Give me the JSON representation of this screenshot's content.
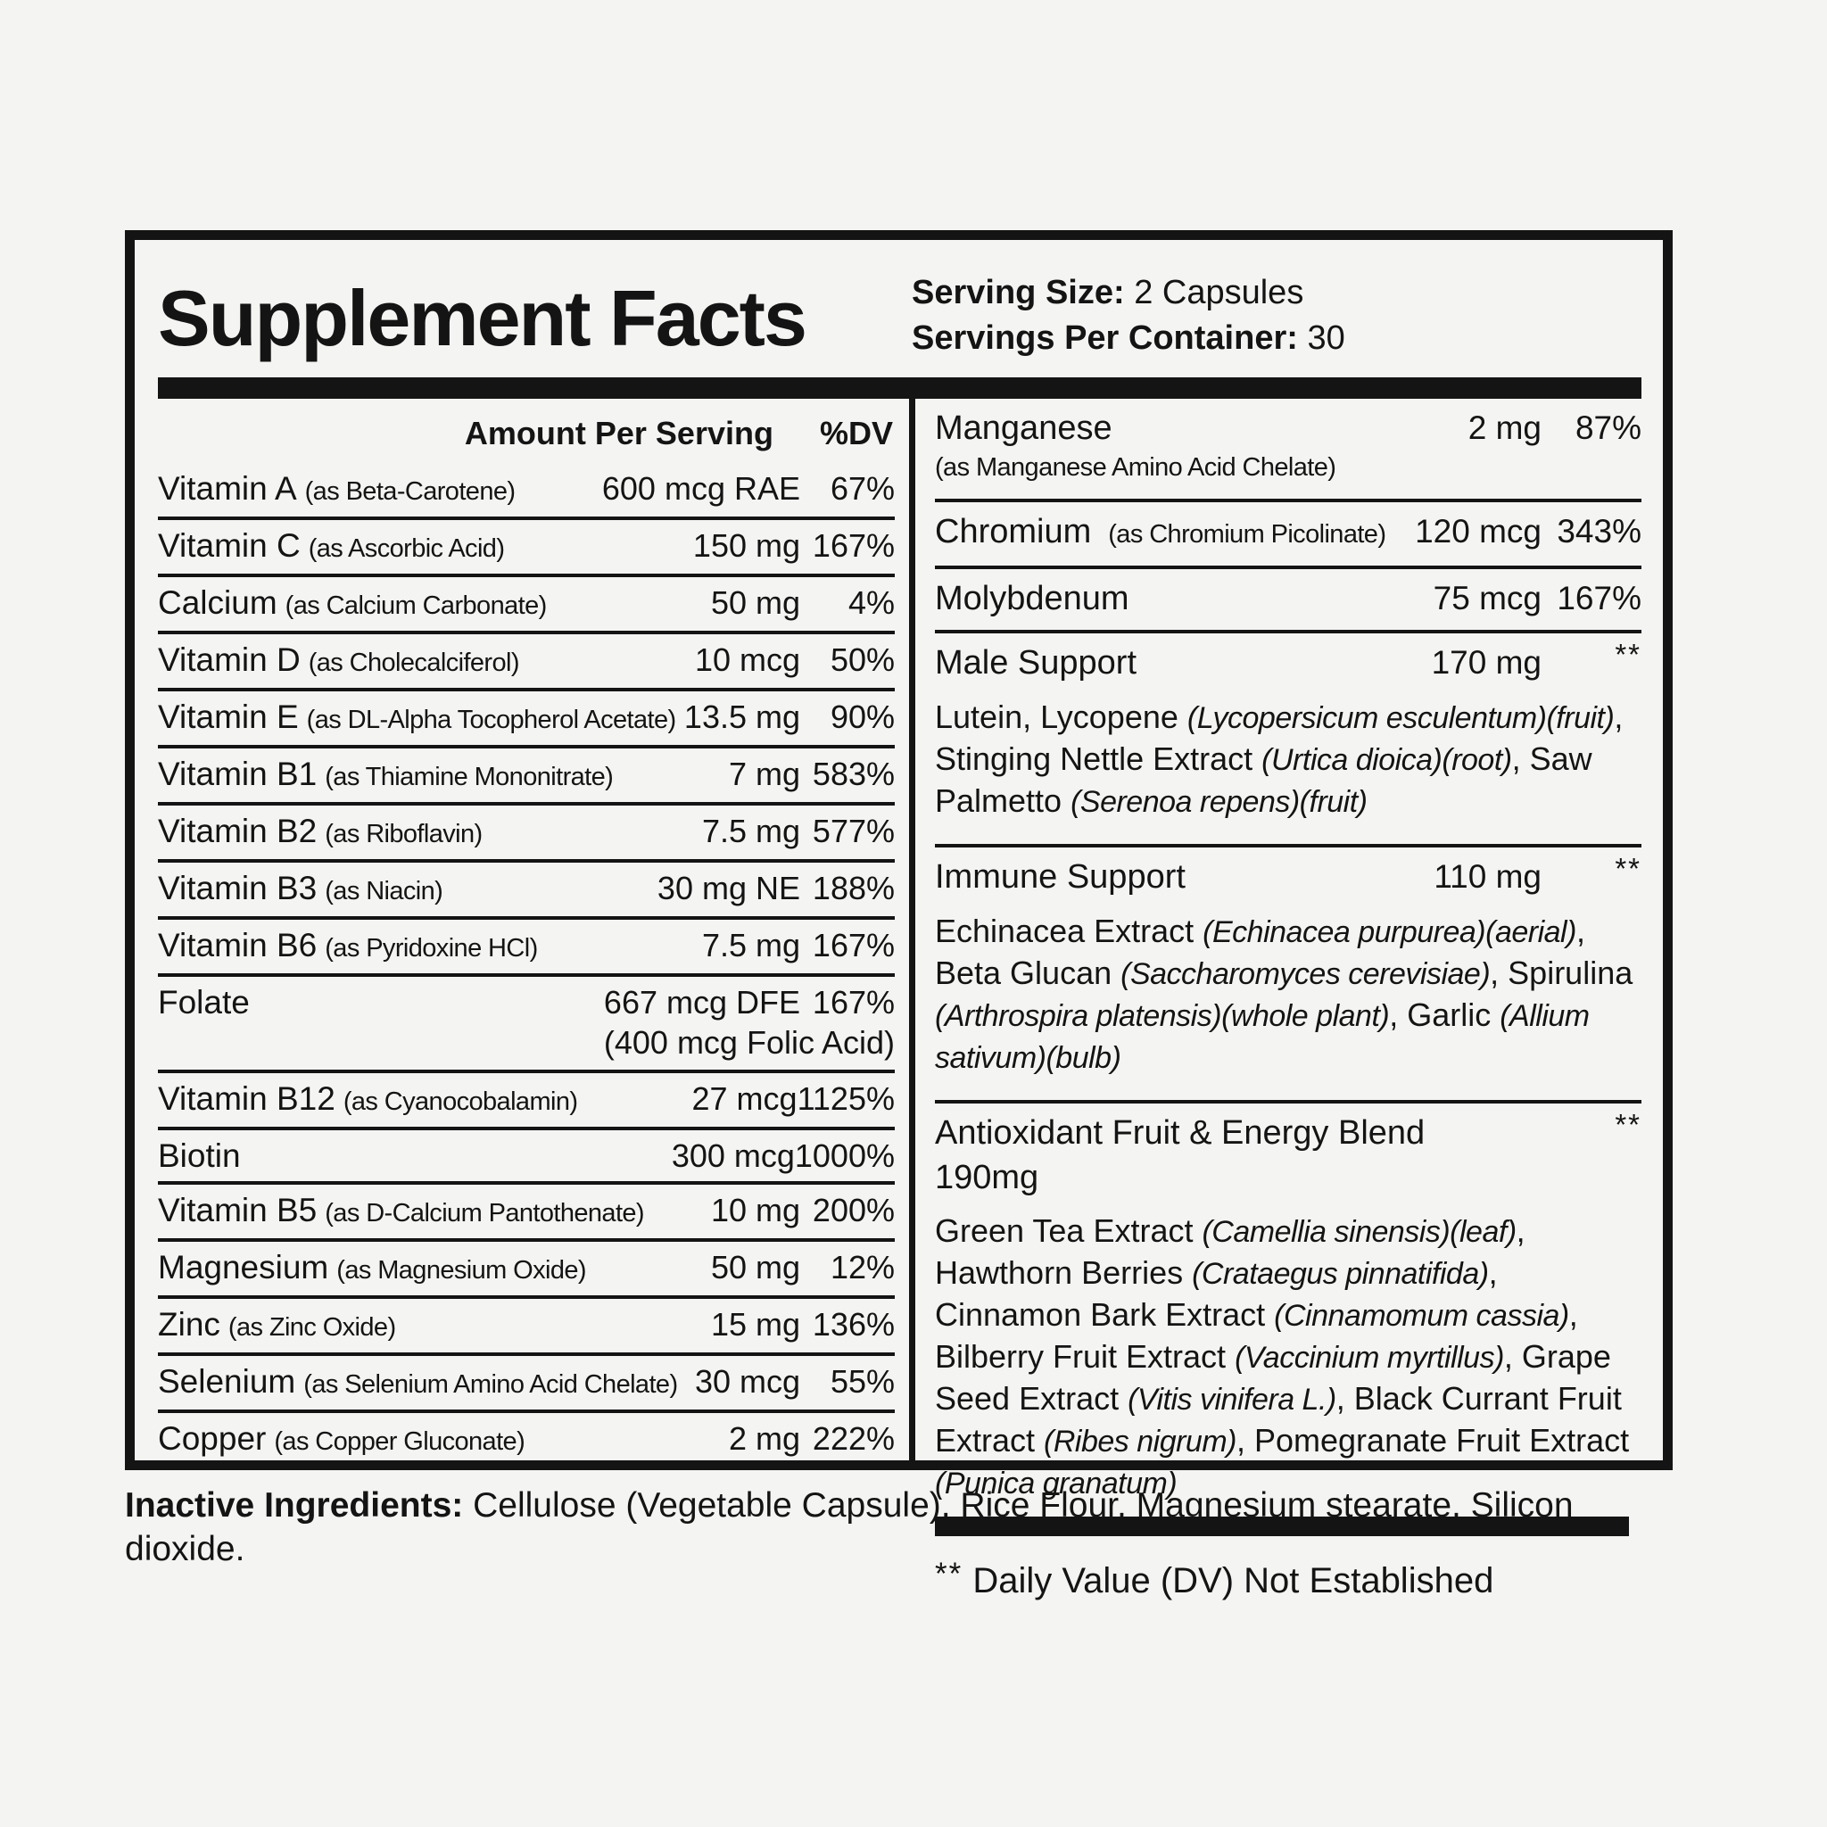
{
  "colors": {
    "ink": "#141414",
    "background": "#f4f4f2"
  },
  "label": {
    "title": "Supplement Facts",
    "serving": {
      "size_label": "Serving Size:",
      "size_value": "2 Capsules",
      "container_label": "Servings Per Container:",
      "container_value": "30"
    },
    "left": {
      "header_amount": "Amount Per Serving",
      "header_dv": "%DV",
      "rows": [
        {
          "name": "Vitamin A",
          "form": "(as Beta-Carotene)",
          "amount": "600 mcg RAE",
          "dv": "67%"
        },
        {
          "name": "Vitamin C",
          "form": "(as Ascorbic Acid)",
          "amount": "150 mg",
          "dv": "167%"
        },
        {
          "name": "Calcium",
          "form": "(as Calcium Carbonate)",
          "amount": "50 mg",
          "dv": "4%"
        },
        {
          "name": "Vitamin D",
          "form": "(as Cholecalciferol)",
          "amount": "10 mcg",
          "dv": "50%"
        },
        {
          "name": "Vitamin E",
          "form": "(as DL-Alpha Tocopherol Acetate)",
          "amount": "13.5 mg",
          "dv": "90%"
        },
        {
          "name": "Vitamin B1",
          "form": "(as Thiamine Mononitrate)",
          "amount": "7 mg",
          "dv": "583%"
        },
        {
          "name": "Vitamin B2",
          "form": "(as Riboflavin)",
          "amount": "7.5 mg",
          "dv": "577%"
        },
        {
          "name": "Vitamin B3",
          "form": "(as Niacin)",
          "amount": "30 mg NE",
          "dv": "188%"
        },
        {
          "name": "Vitamin B6",
          "form": "(as Pyridoxine HCl)",
          "amount": "7.5 mg",
          "dv": "167%"
        },
        {
          "name": "Folate",
          "form": "",
          "amount": "667 mcg DFE",
          "dv": "167%",
          "note": "(400 mcg Folic Acid)"
        },
        {
          "name": "Vitamin B12",
          "form": "(as Cyanocobalamin)",
          "amount": "27 mcg",
          "dv": "1125%"
        },
        {
          "name": "Biotin",
          "form": "",
          "amount": "300 mcg",
          "dv": "1000%"
        },
        {
          "name": "Vitamin B5",
          "form": "(as D-Calcium Pantothenate)",
          "amount": "10 mg",
          "dv": "200%"
        },
        {
          "name": "Magnesium",
          "form": "(as Magnesium Oxide)",
          "amount": "50 mg",
          "dv": "12%"
        },
        {
          "name": "Zinc",
          "form": "(as Zinc Oxide)",
          "amount": "15 mg",
          "dv": "136%"
        },
        {
          "name": "Selenium",
          "form": "(as Selenium Amino Acid Chelate)",
          "amount": "30 mcg",
          "dv": "55%"
        },
        {
          "name": "Copper",
          "form": "(as Copper Gluconate)",
          "amount": "2 mg",
          "dv": "222%"
        }
      ]
    },
    "right": {
      "rows": [
        {
          "type": "nutrient",
          "name": "Manganese",
          "sub": "(as Manganese Amino Acid Chelate)",
          "amount": "2 mg",
          "dv": "87%"
        },
        {
          "type": "nutrient",
          "name": "Chromium",
          "form": "(as Chromium Picolinate)",
          "amount": "120 mcg",
          "dv": "343%"
        },
        {
          "type": "nutrient",
          "name": "Molybdenum",
          "amount": "75 mcg",
          "dv": "167%"
        },
        {
          "type": "blend",
          "name": "Male Support",
          "amount": "170 mg",
          "dv": "**",
          "ingredients": [
            {
              "t": "Lutein, Lycopene "
            },
            {
              "t": "(Lycopersicum esculentum)(fruit)",
              "i": true
            },
            {
              "t": ", Stinging Nettle Extract "
            },
            {
              "t": "(Urtica dioica)(root)",
              "i": true
            },
            {
              "t": ", Saw Palmetto "
            },
            {
              "t": "(Serenoa repens)(fruit)",
              "i": true
            }
          ]
        },
        {
          "type": "blend",
          "name": "Immune Support",
          "amount": "110 mg",
          "dv": "**",
          "ingredients": [
            {
              "t": "Echinacea Extract "
            },
            {
              "t": "(Echinacea purpurea)(aerial)",
              "i": true
            },
            {
              "t": ", Beta Glucan "
            },
            {
              "t": "(Saccharomyces cerevisiae)",
              "i": true
            },
            {
              "t": ", Spirulina "
            },
            {
              "t": "(Arthrospira platensis)(whole plant)",
              "i": true
            },
            {
              "t": ", Garlic "
            },
            {
              "t": "(Allium sativum)(bulb)",
              "i": true
            }
          ]
        },
        {
          "type": "blend",
          "name": "Antioxidant Fruit & Energy Blend 190mg",
          "amount": "",
          "dv": "**",
          "ingredients": [
            {
              "t": "Green Tea Extract "
            },
            {
              "t": "(Camellia sinensis)(leaf)",
              "i": true
            },
            {
              "t": ", Hawthorn Berries "
            },
            {
              "t": "(Crataegus pinnatifida)",
              "i": true
            },
            {
              "t": ", Cinnamon Bark Extract "
            },
            {
              "t": "(Cinnamomum cassia)",
              "i": true
            },
            {
              "t": ", Bilberry Fruit Extract "
            },
            {
              "t": "(Vaccinium myrtillus)",
              "i": true
            },
            {
              "t": ", Grape Seed Extract "
            },
            {
              "t": "(Vitis vinifera L.)",
              "i": true
            },
            {
              "t": ", Black Currant Fruit Extract "
            },
            {
              "t": "(Ribes nigrum)",
              "i": true
            },
            {
              "t": ", Pomegranate Fruit Extract "
            },
            {
              "t": "(Punica granatum)",
              "i": true
            }
          ]
        }
      ]
    },
    "footnote": {
      "marker": "**",
      "text": "Daily Value (DV) Not Established"
    }
  },
  "inactive": {
    "label": "Inactive Ingredients:",
    "text": "Cellulose (Vegetable Capsule), Rice Flour, Magnesium stearate, Silicon dioxide."
  }
}
